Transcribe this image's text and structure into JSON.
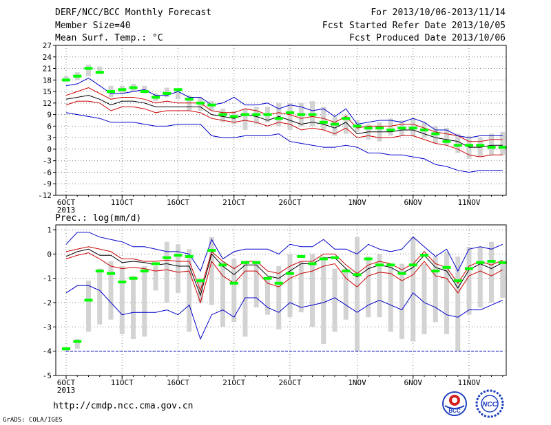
{
  "header": {
    "title": "DERF/NCC/BCC Monthly Forecast",
    "member": "Member Size=40",
    "variable": "Mean Surf. Temp.: °C",
    "period": "For 2013/10/06-2013/11/14",
    "started": "Fcst Started Refer Date 2013/10/05",
    "produced": "Fcst Produced Date 2013/10/06"
  },
  "footer": {
    "url": "http://cmdp.ncc.cma.gov.cn",
    "grads": "GrADS: COLA/IGES",
    "logo_bcc": "BCC",
    "logo_ncc": "NCC"
  },
  "colors": {
    "box": "#d3d3d3",
    "median": "#00ff00",
    "mean": "#000000",
    "inner": "#cc0000",
    "outer": "#0000cc",
    "grid": "#7f7f7f"
  },
  "chart_data": [
    {
      "type": "box-line",
      "title": "Mean Surf. Temp.: °C",
      "x": [
        "6OCT",
        "7OCT",
        "8OCT",
        "9OCT",
        "10OCT",
        "11OCT",
        "12OCT",
        "13OCT",
        "14OCT",
        "15OCT",
        "16OCT",
        "17OCT",
        "18OCT",
        "19OCT",
        "20OCT",
        "21OCT",
        "22OCT",
        "23OCT",
        "24OCT",
        "25OCT",
        "26OCT",
        "27OCT",
        "28OCT",
        "29OCT",
        "30OCT",
        "31OCT",
        "1NOV",
        "2NOV",
        "3NOV",
        "4NOV",
        "5NOV",
        "6NOV",
        "7NOV",
        "8NOV",
        "9NOV",
        "10NOV",
        "11NOV",
        "12NOV",
        "13NOV",
        "14NOV"
      ],
      "x_tick_labels": [
        "6OCT",
        "11OCT",
        "16OCT",
        "21OCT",
        "26OCT",
        "1NOV",
        "6NOV",
        "11NOV"
      ],
      "x_year_label": "2013",
      "ylim": [
        -12,
        27
      ],
      "y_ticks": [
        -12,
        -9,
        -6,
        -3,
        0,
        3,
        6,
        9,
        12,
        15,
        18,
        21,
        24,
        27
      ],
      "grid": true,
      "box_low": [
        17.5,
        18.0,
        19.0,
        19.5,
        13.5,
        14.5,
        15.0,
        14.5,
        12.5,
        13.5,
        13.0,
        10.0,
        10.0,
        10.0,
        7.0,
        6.5,
        5.0,
        6.5,
        7.0,
        6.0,
        5.0,
        6.0,
        6.0,
        5.0,
        3.5,
        4.0,
        4.5,
        2.5,
        2.0,
        3.5,
        3.5,
        3.5,
        3.0,
        1.5,
        1.0,
        -1.0,
        -2.5,
        -2.0,
        -1.5,
        -1.5
      ],
      "box_high": [
        19.0,
        20.0,
        22.0,
        21.5,
        16.5,
        16.5,
        17.0,
        16.5,
        14.5,
        16.0,
        15.5,
        14.0,
        13.5,
        12.5,
        10.5,
        10.0,
        10.5,
        11.0,
        11.0,
        12.0,
        12.0,
        12.0,
        12.5,
        11.0,
        8.5,
        9.0,
        7.5,
        6.5,
        7.0,
        8.0,
        7.5,
        8.0,
        7.0,
        6.0,
        5.5,
        4.0,
        3.5,
        3.0,
        4.0,
        4.5
      ],
      "median": [
        18.0,
        19.0,
        21.0,
        20.0,
        15.0,
        15.5,
        16.0,
        15.0,
        13.5,
        14.5,
        15.5,
        13.0,
        12.0,
        11.5,
        9.0,
        8.5,
        9.0,
        9.0,
        9.0,
        8.0,
        9.5,
        9.0,
        9.0,
        7.0,
        6.5,
        8.0,
        6.0,
        5.5,
        5.5,
        5.0,
        5.5,
        5.5,
        5.0,
        4.0,
        2.0,
        1.0,
        1.0,
        1.0,
        0.5,
        0.5
      ],
      "series": [
        {
          "name": "mean",
          "values": [
            13.0,
            13.5,
            14.0,
            13.0,
            11.5,
            12.5,
            12.5,
            12.0,
            11.0,
            11.0,
            11.0,
            11.0,
            11.0,
            9.0,
            8.5,
            8.0,
            9.0,
            8.5,
            7.5,
            8.5,
            7.5,
            6.5,
            7.0,
            6.5,
            5.5,
            7.0,
            4.0,
            4.5,
            4.5,
            4.5,
            5.0,
            5.0,
            4.0,
            3.0,
            2.5,
            2.0,
            0.5,
            0.5,
            1.0,
            1.0
          ]
        },
        {
          "name": "inner_upper",
          "values": [
            14.0,
            15.0,
            16.0,
            14.5,
            13.0,
            13.5,
            13.5,
            13.0,
            12.0,
            12.5,
            12.0,
            12.0,
            12.0,
            10.0,
            9.5,
            9.5,
            10.5,
            10.0,
            9.0,
            9.5,
            9.0,
            8.0,
            8.5,
            8.0,
            7.0,
            8.5,
            5.5,
            6.0,
            6.0,
            6.0,
            6.5,
            6.5,
            5.5,
            4.5,
            4.0,
            3.5,
            2.0,
            2.0,
            2.5,
            2.5
          ]
        },
        {
          "name": "inner_lower",
          "values": [
            11.5,
            12.5,
            12.5,
            12.0,
            10.0,
            11.0,
            11.0,
            10.5,
            9.5,
            10.0,
            10.0,
            10.0,
            9.5,
            8.0,
            7.5,
            7.0,
            7.5,
            7.0,
            6.0,
            7.0,
            6.5,
            5.0,
            5.5,
            5.0,
            4.0,
            5.5,
            3.0,
            3.5,
            3.0,
            3.0,
            3.5,
            3.5,
            2.5,
            1.5,
            1.0,
            0.0,
            -1.5,
            -2.0,
            -1.5,
            -1.5
          ]
        },
        {
          "name": "outer_upper",
          "values": [
            16.5,
            17.0,
            18.5,
            16.5,
            14.5,
            14.5,
            15.0,
            15.5,
            14.0,
            14.0,
            15.0,
            13.5,
            13.5,
            11.5,
            12.0,
            13.5,
            11.5,
            11.5,
            12.0,
            10.5,
            11.5,
            11.0,
            10.0,
            10.5,
            8.5,
            10.5,
            6.5,
            7.0,
            7.5,
            7.5,
            7.0,
            8.0,
            7.0,
            5.0,
            5.0,
            3.5,
            3.0,
            3.5,
            3.5,
            3.5
          ]
        },
        {
          "name": "outer_lower",
          "values": [
            9.5,
            9.0,
            8.5,
            8.0,
            7.0,
            7.0,
            7.0,
            6.5,
            6.0,
            6.0,
            6.5,
            6.5,
            6.5,
            3.5,
            3.0,
            3.0,
            3.5,
            3.5,
            3.5,
            4.0,
            2.0,
            1.5,
            1.0,
            0.5,
            0.5,
            1.0,
            0.5,
            -1.0,
            -1.0,
            -1.5,
            -1.5,
            -2.0,
            -2.5,
            -4.0,
            -4.5,
            -5.5,
            -6.0,
            -5.5,
            -5.5,
            -5.5
          ]
        }
      ]
    },
    {
      "type": "box-line",
      "title": "Prec.: log(mm/d)",
      "x": [
        "6OCT",
        "7OCT",
        "8OCT",
        "9OCT",
        "10OCT",
        "11OCT",
        "12OCT",
        "13OCT",
        "14OCT",
        "15OCT",
        "16OCT",
        "17OCT",
        "18OCT",
        "19OCT",
        "20OCT",
        "21OCT",
        "22OCT",
        "23OCT",
        "24OCT",
        "25OCT",
        "26OCT",
        "27OCT",
        "28OCT",
        "29OCT",
        "30OCT",
        "31OCT",
        "1NOV",
        "2NOV",
        "3NOV",
        "4NOV",
        "5NOV",
        "6NOV",
        "7NOV",
        "8NOV",
        "9NOV",
        "10NOV",
        "11NOV",
        "12NOV",
        "13NOV",
        "14NOV"
      ],
      "x_tick_labels": [
        "6OCT",
        "11OCT",
        "16OCT",
        "21OCT",
        "26OCT",
        "1NOV",
        "6NOV",
        "11NOV"
      ],
      "x_year_label": "2013",
      "ylim": [
        -5,
        1.2
      ],
      "y_ticks": [
        -5,
        -4,
        -3,
        -2,
        -1,
        0,
        1
      ],
      "grid": true,
      "box_low": [
        -4.0,
        -3.9,
        -3.2,
        -2.9,
        -2.7,
        -3.3,
        -3.5,
        -3.4,
        -1.5,
        -2.0,
        -1.6,
        -3.2,
        -2.0,
        -2.1,
        -3.0,
        -2.8,
        -3.4,
        -2.2,
        -2.5,
        -3.1,
        -2.6,
        -2.4,
        -3.0,
        -3.7,
        -3.2,
        -2.7,
        -4.0,
        -2.6,
        -2.6,
        -3.2,
        -3.5,
        -3.6,
        -3.3,
        -2.8,
        -3.3,
        -4.0,
        -2.5,
        -2.2,
        -2.0,
        -1.8
      ],
      "box_high": [
        -3.9,
        -3.5,
        -1.1,
        -0.6,
        -0.3,
        -0.5,
        -0.9,
        -0.5,
        -0.5,
        0.5,
        0.4,
        0.2,
        -1.0,
        0.7,
        -0.3,
        -0.2,
        -0.4,
        -0.3,
        -1.0,
        -0.5,
        0.0,
        -0.3,
        0.0,
        -0.1,
        -0.6,
        -0.6,
        0.7,
        -0.1,
        0.0,
        -0.4,
        -0.4,
        0.7,
        -0.4,
        -0.1,
        0.1,
        -0.1,
        0.3,
        0.3,
        0.5,
        -0.3
      ],
      "median": [
        -3.9,
        -3.6,
        -1.9,
        -0.7,
        -0.8,
        -1.15,
        -1.0,
        -0.7,
        -0.4,
        -0.15,
        -0.05,
        -0.1,
        -1.1,
        0.15,
        -0.45,
        -1.2,
        -0.35,
        -0.35,
        -1.0,
        -1.2,
        -0.8,
        -0.1,
        -0.4,
        -0.2,
        -0.15,
        -0.7,
        -0.85,
        -0.2,
        -0.45,
        -0.45,
        -0.8,
        -0.45,
        -0.05,
        -0.7,
        -0.55,
        -1.1,
        -0.6,
        -0.35,
        -0.3,
        -0.35
      ],
      "series": [
        {
          "name": "mean",
          "values": [
            -0.1,
            0.1,
            0.2,
            -0.05,
            -0.05,
            -0.35,
            -0.3,
            -0.35,
            -0.45,
            -0.4,
            -0.5,
            -0.5,
            -1.7,
            0.0,
            -0.5,
            -0.85,
            -0.45,
            -0.45,
            -0.9,
            -1.0,
            -0.7,
            -0.4,
            -0.4,
            -0.15,
            -0.15,
            -0.6,
            -0.95,
            -0.6,
            -0.45,
            -0.55,
            -0.8,
            -0.55,
            -0.05,
            -0.55,
            -0.7,
            -1.4,
            -0.65,
            -0.4,
            -0.6,
            -0.35
          ]
        },
        {
          "name": "inner_upper",
          "values": [
            0.1,
            0.2,
            0.3,
            0.2,
            0.1,
            -0.2,
            -0.2,
            -0.3,
            -0.3,
            -0.25,
            -0.3,
            -0.3,
            -1.5,
            0.1,
            -0.3,
            -0.6,
            -0.3,
            -0.3,
            -0.7,
            -0.8,
            -0.5,
            -0.3,
            -0.3,
            0.0,
            0.0,
            -0.45,
            -0.8,
            -0.45,
            -0.3,
            -0.4,
            -0.65,
            -0.4,
            0.1,
            -0.4,
            -0.55,
            -1.2,
            -0.5,
            -0.3,
            -0.45,
            -0.25
          ]
        },
        {
          "name": "inner_lower",
          "values": [
            -0.2,
            -0.05,
            0.05,
            -0.2,
            -0.5,
            -0.6,
            -0.55,
            -0.6,
            -0.7,
            -0.65,
            -0.75,
            -0.7,
            -2.0,
            -0.3,
            -0.9,
            -1.2,
            -0.7,
            -0.7,
            -1.2,
            -1.35,
            -1.0,
            -0.8,
            -0.7,
            -0.5,
            -0.4,
            -1.0,
            -1.35,
            -0.9,
            -0.75,
            -0.8,
            -1.1,
            -0.85,
            -0.3,
            -0.9,
            -1.0,
            -1.6,
            -0.9,
            -0.7,
            -0.9,
            -0.65
          ]
        },
        {
          "name": "outer_upper",
          "values": [
            0.4,
            0.9,
            0.9,
            0.7,
            0.6,
            0.5,
            0.3,
            0.3,
            0.2,
            0.1,
            0.1,
            0.0,
            -0.7,
            0.6,
            -0.2,
            0.1,
            0.2,
            0.2,
            0.2,
            0.0,
            0.4,
            0.3,
            0.3,
            0.6,
            0.2,
            0.2,
            0.0,
            0.4,
            0.2,
            0.1,
            0.2,
            0.7,
            0.3,
            -0.1,
            0.2,
            -0.7,
            0.2,
            0.3,
            0.2,
            0.4
          ]
        },
        {
          "name": "outer_lower",
          "values": [
            -1.6,
            -1.3,
            -1.3,
            -1.5,
            -2.0,
            -2.5,
            -2.4,
            -2.4,
            -2.4,
            -2.3,
            -2.5,
            -2.1,
            -3.5,
            -2.5,
            -2.3,
            -2.6,
            -1.8,
            -1.8,
            -2.2,
            -2.4,
            -2.0,
            -2.2,
            -2.1,
            -2.0,
            -1.8,
            -2.1,
            -2.4,
            -2.1,
            -1.9,
            -2.1,
            -2.3,
            -1.6,
            -2.0,
            -2.2,
            -2.5,
            -2.6,
            -2.3,
            -2.3,
            -2.1,
            -1.9
          ]
        },
        {
          "name": "floor",
          "values": [
            -4,
            -4,
            -4,
            -4,
            -4,
            -4,
            -4,
            -4,
            -4,
            -4,
            -4,
            -4,
            -4,
            -4,
            -4,
            -4,
            -4,
            -4,
            -4,
            -4,
            -4,
            -4,
            -4,
            -4,
            -4,
            -4,
            -4,
            -4,
            -4,
            -4,
            -4,
            -4,
            -4,
            -4,
            -4,
            -4,
            -4,
            -4,
            -4,
            -4
          ]
        }
      ]
    }
  ]
}
